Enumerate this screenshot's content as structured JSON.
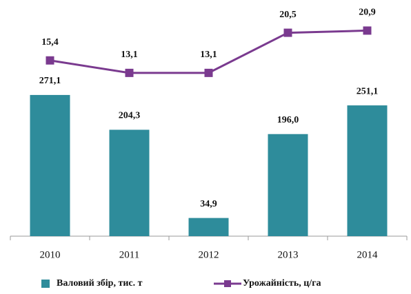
{
  "chart_data": {
    "type": "bar",
    "categories": [
      "2010",
      "2011",
      "2012",
      "2013",
      "2014"
    ],
    "series": [
      {
        "name": "Валовий збір, тис. т",
        "color": "#2e8c9b",
        "values": [
          271.1,
          204.3,
          34.9,
          196.0,
          251.1
        ],
        "value_labels": [
          "271,1",
          "204,3",
          "34,9",
          "196,0",
          "251,1"
        ]
      },
      {
        "name": "Урожайність, ц/га",
        "color": "#7a3a8f",
        "axis": "y2",
        "type": "line",
        "values": [
          15.4,
          13.1,
          13.1,
          20.5,
          20.9
        ],
        "value_labels": [
          "15,4",
          "13,1",
          "13,1",
          "20,5",
          "20,9"
        ]
      }
    ],
    "ylim": [
      0,
      427
    ],
    "y2lim": [
      -17,
      24
    ]
  }
}
